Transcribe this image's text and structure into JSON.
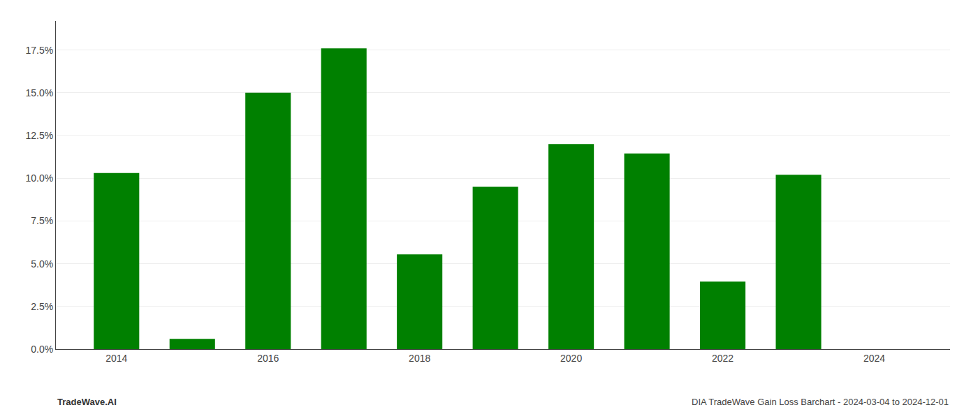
{
  "chart_data": {
    "type": "bar",
    "x": [
      2014,
      2015,
      2016,
      2017,
      2018,
      2019,
      2020,
      2021,
      2022,
      2023
    ],
    "values": [
      0.103,
      0.006,
      0.15,
      0.176,
      0.0555,
      0.095,
      0.12,
      0.1145,
      0.0395,
      0.102
    ],
    "color": "#008000",
    "xlim": [
      2013.2,
      2025.0
    ],
    "xticks": [
      2014,
      2016,
      2018,
      2020,
      2022,
      2024
    ],
    "ylim": [
      0,
      0.192
    ],
    "yticks": [
      {
        "value": 0.0,
        "label": "0.0%"
      },
      {
        "value": 0.025,
        "label": "2.5%"
      },
      {
        "value": 0.05,
        "label": "5.0%"
      },
      {
        "value": 0.075,
        "label": "7.5%"
      },
      {
        "value": 0.1,
        "label": "10.0%"
      },
      {
        "value": 0.125,
        "label": "12.5%"
      },
      {
        "value": 0.15,
        "label": "15.0%"
      },
      {
        "value": 0.175,
        "label": "17.5%"
      }
    ],
    "grid": true,
    "annotations": [
      "TradeWave.AI",
      "DIA TradeWave Gain Loss Barchart - 2024-03-04 to 2024-12-01"
    ]
  }
}
